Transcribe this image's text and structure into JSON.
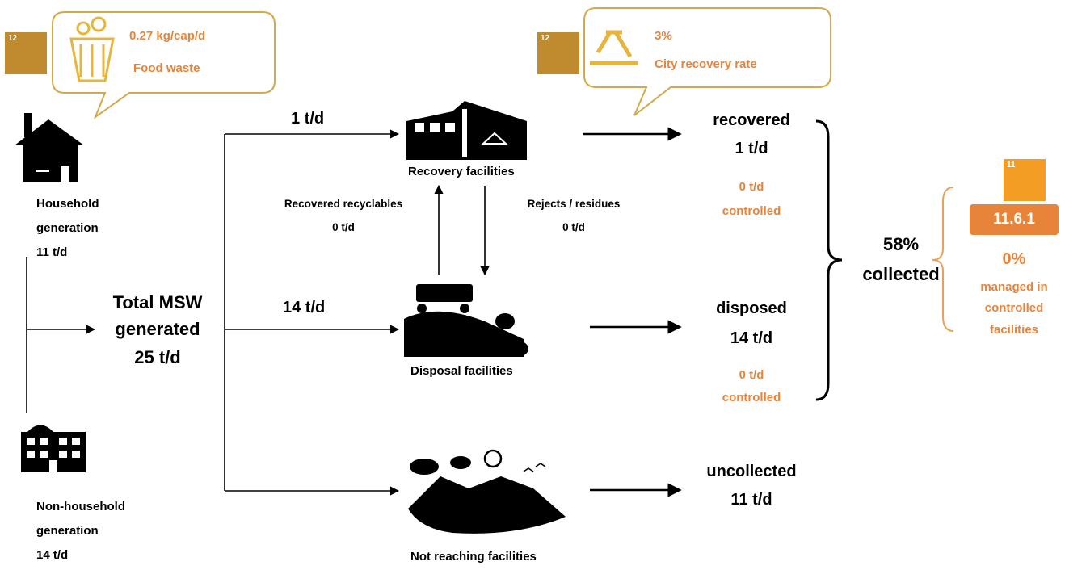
{
  "sdg_badges": [
    "12",
    "12",
    "11"
  ],
  "food_waste": {
    "value": "0.27 kg/cap/d",
    "label": "Food waste"
  },
  "recovery_rate": {
    "value": "3%",
    "label": "City recovery rate"
  },
  "household": {
    "label": "Household generation",
    "amount": "11 t/d"
  },
  "non_household": {
    "label": "Non-household generation",
    "amount": "14 t/d"
  },
  "total": {
    "label": "Total MSW generated",
    "amount": "25 t/d"
  },
  "flows": {
    "to_recovery": "1 t/d",
    "to_disposal": "14 t/d"
  },
  "facilities": {
    "recovery": "Recovery facilities",
    "disposal": "Disposal facilities",
    "uncollected": "Not reaching facilities"
  },
  "exchanges": {
    "recyclables": {
      "label": "Recovered recyclables",
      "amount": "0 t/d"
    },
    "rejects": {
      "label": "Rejects / residues",
      "amount": "0 t/d"
    }
  },
  "outcomes": {
    "recovered": {
      "label": "recovered",
      "amount": "1 t/d",
      "controlled_amount": "0 t/d",
      "controlled_label": "controlled"
    },
    "disposed": {
      "label": "disposed",
      "amount": "14 t/d",
      "controlled_amount": "0 t/d",
      "controlled_label": "controlled"
    },
    "uncollected": {
      "label": "uncollected",
      "amount": "11 t/d"
    }
  },
  "collected": {
    "value": "58%",
    "label": "collected"
  },
  "indicator": {
    "code": "11.6.1",
    "value": "0%",
    "label": "managed in controlled facilities"
  }
}
